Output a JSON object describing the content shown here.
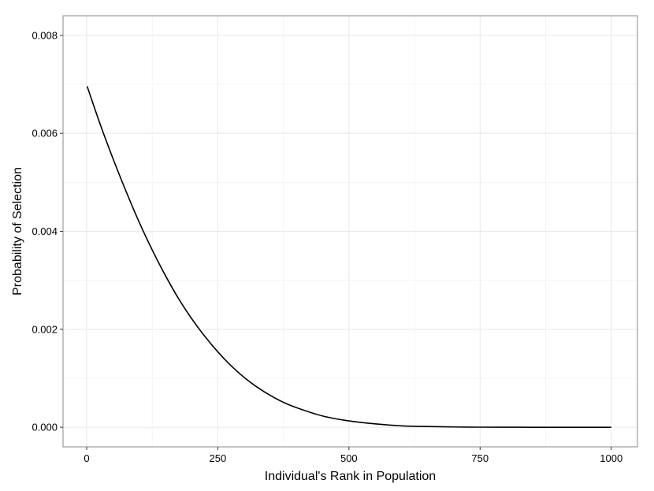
{
  "chart_data": {
    "type": "line",
    "title": "",
    "xlabel": "Individual's Rank in Population",
    "ylabel": "Probability of Selection",
    "xlim": [
      -45,
      1050
    ],
    "ylim": [
      -0.0004,
      0.0084
    ],
    "x_ticks": [
      0,
      250,
      500,
      750,
      1000
    ],
    "x_tick_labels": [
      "0",
      "250",
      "500",
      "750",
      "1000"
    ],
    "y_ticks": [
      0.0,
      0.002,
      0.004,
      0.006,
      0.008
    ],
    "y_tick_labels": [
      "0.000",
      "0.002",
      "0.004",
      "0.006",
      "0.008"
    ],
    "grid": true,
    "legend": "none",
    "series": [
      {
        "color": "#000000",
        "x": [
          1,
          25,
          50,
          75,
          100,
          125,
          150,
          175,
          200,
          225,
          250,
          275,
          300,
          325,
          350,
          375,
          400,
          450,
          500,
          550,
          600,
          650,
          700,
          750,
          800,
          850,
          900,
          950,
          1000
        ],
        "y": [
          0.00696,
          0.00621,
          0.00549,
          0.00482,
          0.00419,
          0.00362,
          0.0031,
          0.00263,
          0.00222,
          0.00186,
          0.00154,
          0.00126,
          0.00102,
          0.00082,
          0.00065,
          0.00051,
          0.0004,
          0.00023,
          0.00013,
          7e-05,
          3e-05,
          1.5e-05,
          6e-06,
          2e-06,
          1e-06,
          0.0,
          0.0,
          0.0,
          0.0
        ]
      }
    ]
  }
}
